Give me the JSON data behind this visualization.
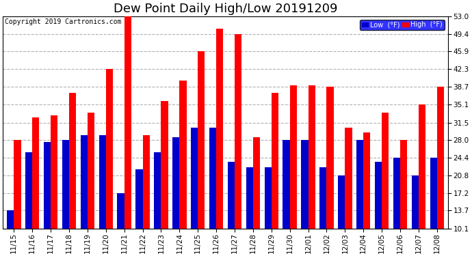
{
  "title": "Dew Point Daily High/Low 20191209",
  "copyright": "Copyright 2019 Cartronics.com",
  "legend_low": "Low  (°F)",
  "legend_high": "High  (°F)",
  "dates": [
    "11/15",
    "11/16",
    "11/17",
    "11/18",
    "11/19",
    "11/20",
    "11/21",
    "11/22",
    "11/23",
    "11/24",
    "11/25",
    "11/26",
    "11/27",
    "11/28",
    "11/29",
    "11/30",
    "12/01",
    "12/02",
    "12/03",
    "12/04",
    "12/05",
    "12/06",
    "12/07",
    "12/08"
  ],
  "high": [
    28.0,
    32.5,
    33.0,
    37.5,
    33.5,
    42.3,
    53.0,
    29.0,
    35.9,
    40.0,
    45.9,
    50.5,
    49.4,
    28.5,
    37.5,
    39.0,
    39.0,
    38.7,
    30.5,
    29.5,
    33.5,
    28.0,
    35.1,
    38.7
  ],
  "low": [
    13.7,
    25.5,
    27.5,
    28.0,
    29.0,
    29.0,
    17.2,
    22.0,
    25.5,
    28.5,
    30.5,
    30.5,
    23.5,
    22.5,
    22.5,
    28.0,
    28.0,
    22.5,
    20.8,
    28.0,
    23.5,
    24.4,
    20.8,
    24.4
  ],
  "high_color": "#ff0000",
  "low_color": "#0000cc",
  "bg_color": "#ffffff",
  "plot_bg": "#ffffff",
  "grid_color": "#b0b0b0",
  "yticks": [
    10.1,
    13.7,
    17.2,
    20.8,
    24.4,
    28.0,
    31.5,
    35.1,
    38.7,
    42.3,
    45.9,
    49.4,
    53.0
  ],
  "ylim": [
    10.1,
    53.0
  ],
  "ymin": 10.1,
  "title_fontsize": 13,
  "copyright_fontsize": 7,
  "tick_fontsize": 7.5,
  "bar_width": 0.38
}
